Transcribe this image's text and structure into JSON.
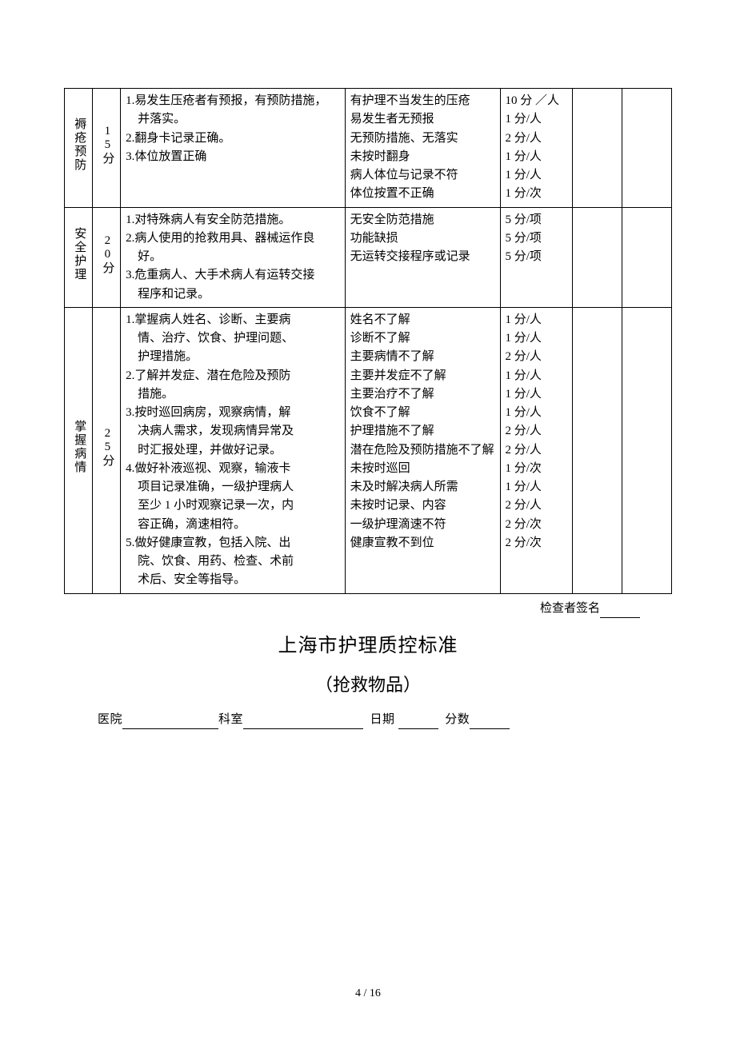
{
  "table": {
    "rows": [
      {
        "category": "褥疮预防",
        "score": "15分",
        "requirements": "1.易发生压疮者有预报，有预防措施，\n　并落实。\n2.翻身卡记录正确。\n3.体位放置正确",
        "deduction_items": "有护理不当发生的压疮\n易发生者无预报\n无预防措施、无落实\n未按时翻身\n病人体位与记录不符\n体位按置不正确",
        "deduction_std": "10 分 ／人\n1 分/人\n2 分/人\n1 分/人\n1 分/人\n1 分/次"
      },
      {
        "category": "安全护理",
        "score": "20分",
        "requirements": "1.对特殊病人有安全防范措施。\n2.病人使用的抢救用具、器械运作良\n　好。\n3.危重病人、大手术病人有运转交接\n　程序和记录。",
        "deduction_items": "无安全防范措施\n功能缺损\n无运转交接程序或记录",
        "deduction_std": "5 分/项\n5 分/项\n5 分/项"
      },
      {
        "category": "掌握病情",
        "score": "25分",
        "requirements": "1.掌握病人姓名、诊断、主要病\n　情、治疗、饮食、护理问题、\n　护理措施。\n2.了解并发症、潜在危险及预防\n　措施。\n3.按时巡回病房，观察病情，解\n　决病人需求，发现病情异常及\n　时汇报处理，并做好记录。\n4.做好补液巡视、观察，输液卡\n　项目记录准确，一级护理病人\n　至少 1 小时观察记录一次，内\n　容正确，滴速相符。\n5.做好健康宣教，包括入院、出\n　院、饮食、用药、检查、术前\n　术后、安全等指导。",
        "deduction_items": "姓名不了解\n诊断不了解\n主要病情不了解\n主要并发症不了解\n主要治疗不了解\n饮食不了解\n护理措施不了解\n潜在危险及预防措施不了解\n未按时巡回\n未及时解决病人所需\n未按时记录、内容\n一级护理滴速不符\n健康宣教不到位",
        "deduction_std": "1 分/人\n1 分/人\n2 分/人\n1 分/人\n1 分/人\n1 分/人\n2 分/人\n2 分/人\n1 分/次\n1 分/人\n2 分/人\n2 分/次\n2 分/次"
      }
    ]
  },
  "signature": {
    "label": "检查者签名"
  },
  "heading": {
    "title": "上海市护理质控标准",
    "subtitle": "（抢救物品）"
  },
  "form": {
    "hospital_label": "医院",
    "dept_label": "科室",
    "date_label": "日期",
    "score_label": "分数"
  },
  "footer": {
    "page": "4 / 16"
  }
}
